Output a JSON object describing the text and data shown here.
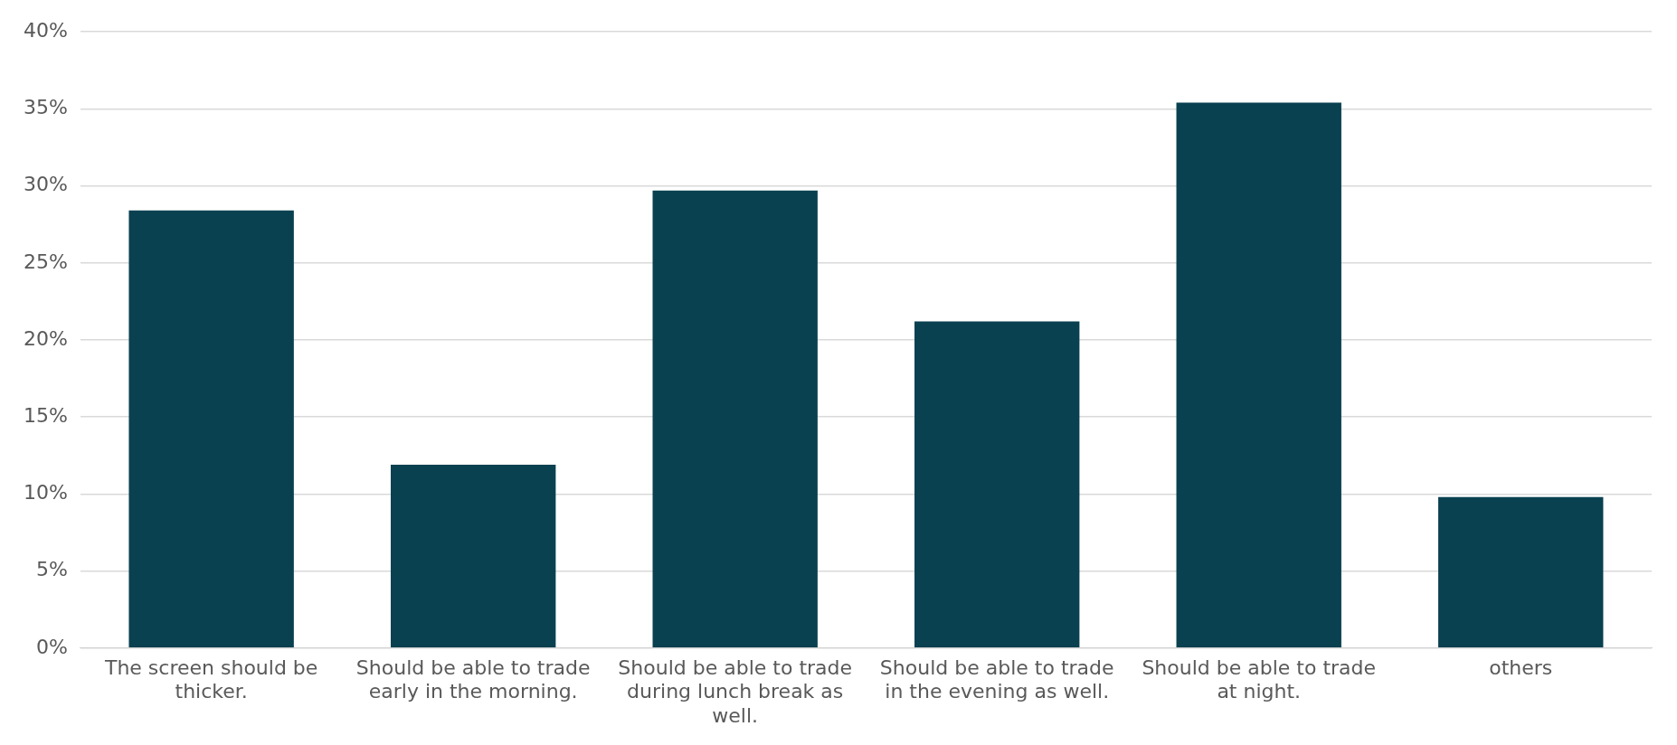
{
  "chart_data": {
    "type": "bar",
    "categories": [
      "The screen should be thicker.",
      "Should be able to trade early in the morning.",
      "Should be able to trade during lunch break as well.",
      "Should be able to trade in the evening as well.",
      "Should be able to trade at night.",
      "others"
    ],
    "values": [
      28.4,
      11.9,
      29.7,
      21.2,
      35.4,
      9.8
    ],
    "color": "#0a4150",
    "ylim": [
      0,
      40
    ],
    "yticks": [
      {
        "value": 0,
        "label": "0%"
      },
      {
        "value": 5,
        "label": "5%"
      },
      {
        "value": 10,
        "label": "10%"
      },
      {
        "value": 15,
        "label": "15%"
      },
      {
        "value": 20,
        "label": "20%"
      },
      {
        "value": 25,
        "label": "25%"
      },
      {
        "value": 30,
        "label": "30%"
      },
      {
        "value": 35,
        "label": "35%"
      },
      {
        "value": 40,
        "label": "40%"
      }
    ],
    "grid": "y",
    "legend": false
  }
}
